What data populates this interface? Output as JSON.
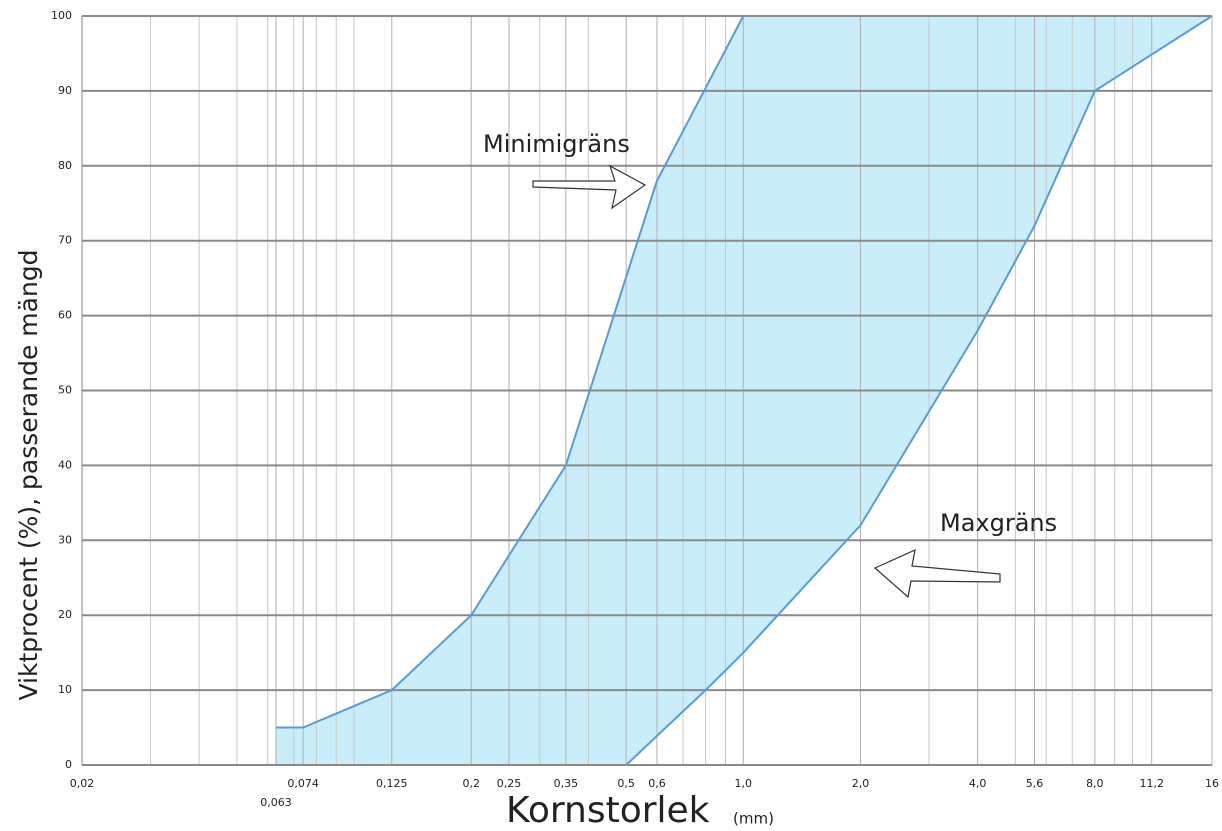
{
  "chart_data": {
    "type": "area_band",
    "xlabel": "Kornstorlek",
    "xlabel_unit": "(mm)",
    "ylabel": "Viktprocent (%), passerande mängd",
    "log_x": true,
    "grid": true,
    "xlim": [
      0.02,
      16
    ],
    "ylim": [
      0,
      100
    ],
    "xticks": [
      {
        "value": 0.02,
        "label": "0,02"
      },
      {
        "value": 0.063,
        "label": "0,063"
      },
      {
        "value": 0.074,
        "label": "0,074"
      },
      {
        "value": 0.125,
        "label": "0,125"
      },
      {
        "value": 0.2,
        "label": "0,2"
      },
      {
        "value": 0.25,
        "label": "0,25"
      },
      {
        "value": 0.35,
        "label": "0,35"
      },
      {
        "value": 0.5,
        "label": "0,5"
      },
      {
        "value": 0.6,
        "label": "0,6"
      },
      {
        "value": 1,
        "label": "1,0"
      },
      {
        "value": 2,
        "label": "2,0"
      },
      {
        "value": 4,
        "label": "4,0"
      },
      {
        "value": 5.6,
        "label": "5,6"
      },
      {
        "value": 8,
        "label": "8,0"
      },
      {
        "value": 11.2,
        "label": "11,2"
      },
      16
    ],
    "x_minor_grid": [
      0.03,
      0.04,
      0.05,
      0.06,
      0.07,
      0.08,
      0.09,
      0.1,
      0.3,
      0.4,
      0.7,
      0.8,
      0.9,
      3,
      5,
      6,
      7,
      9,
      10
    ],
    "yticks": [
      0,
      10,
      20,
      30,
      40,
      50,
      60,
      70,
      80,
      90,
      100
    ],
    "fill_color": "#c9eefa",
    "line_color": "#5b9bd5",
    "series": [
      {
        "name": "Minimigräns",
        "x": [
          0.063,
          0.074,
          0.125,
          0.2,
          0.35,
          0.6,
          1
        ],
        "values": [
          5,
          5,
          10,
          20,
          40,
          78,
          100
        ]
      },
      {
        "name": "Maxgräns",
        "x": [
          0.5,
          0.8,
          1,
          2,
          4,
          5.6,
          8,
          16
        ],
        "values": [
          0,
          10,
          15,
          32,
          58,
          72,
          90,
          100
        ]
      }
    ]
  }
}
